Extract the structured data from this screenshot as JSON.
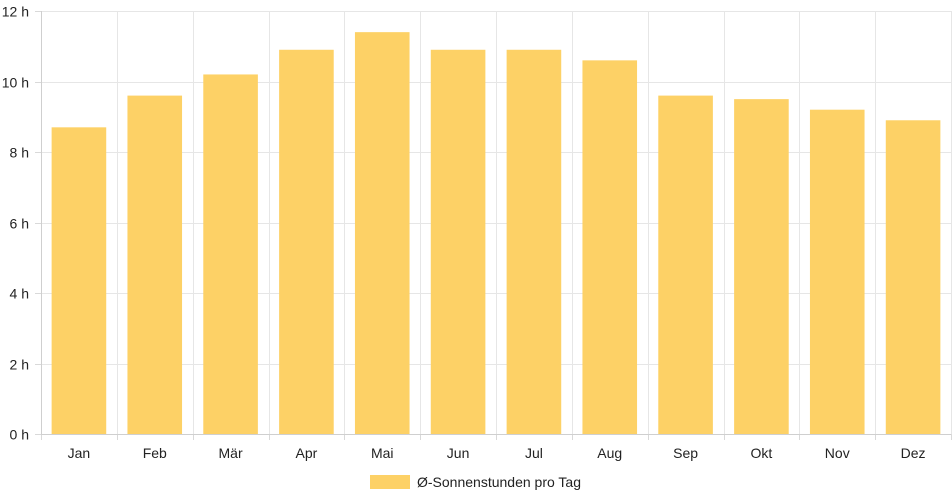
{
  "chart_data": {
    "type": "bar",
    "categories": [
      "Jan",
      "Feb",
      "Mär",
      "Apr",
      "Mai",
      "Jun",
      "Jul",
      "Aug",
      "Sep",
      "Okt",
      "Nov",
      "Dez"
    ],
    "series": [
      {
        "name": "Ø-Sonnenstunden pro Tag",
        "color": "#fdd166",
        "values": [
          8.7,
          9.6,
          10.2,
          10.9,
          11.4,
          10.9,
          10.9,
          10.6,
          9.6,
          9.5,
          9.2,
          8.9
        ]
      }
    ],
    "ylim": [
      0,
      12
    ],
    "yticks": [
      {
        "value": 0,
        "label": "0 h"
      },
      {
        "value": 2,
        "label": "2 h"
      },
      {
        "value": 4,
        "label": "4 h"
      },
      {
        "value": 6,
        "label": "6 h"
      },
      {
        "value": 8,
        "label": "8 h"
      },
      {
        "value": 10,
        "label": "10 h"
      },
      {
        "value": 12,
        "label": "12 h"
      }
    ],
    "grid": true,
    "legend_position": "bottom-center",
    "title": "",
    "xlabel": "",
    "ylabel": ""
  }
}
